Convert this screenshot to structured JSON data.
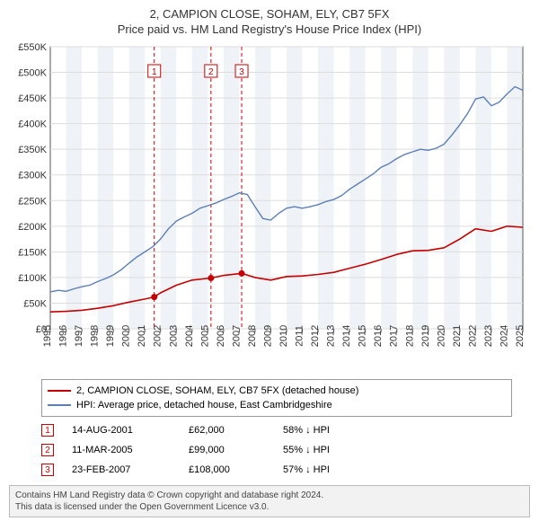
{
  "title_line1": "2, CAMPION CLOSE, SOHAM, ELY, CB7 5FX",
  "title_line2": "Price paid vs. HM Land Registry's House Price Index (HPI)",
  "chart": {
    "type": "line",
    "background_color": "#ffffff",
    "plot_band_color": "#eff3f7",
    "grid_color": "#dddddd",
    "axis_color": "#555555",
    "ylim": [
      0,
      550000
    ],
    "ytick_step": 50000,
    "ytick_labels": [
      "£0",
      "£50K",
      "£100K",
      "£150K",
      "£200K",
      "£250K",
      "£300K",
      "£350K",
      "£400K",
      "£450K",
      "£500K",
      "£550K"
    ],
    "xlim": [
      1995,
      2025
    ],
    "xticks": [
      1995,
      1996,
      1997,
      1998,
      1999,
      2000,
      2001,
      2002,
      2003,
      2004,
      2005,
      2006,
      2007,
      2008,
      2009,
      2010,
      2011,
      2012,
      2013,
      2014,
      2015,
      2016,
      2017,
      2018,
      2019,
      2020,
      2021,
      2022,
      2023,
      2024,
      2025
    ],
    "series": [
      {
        "name": "hpi",
        "color": "#5b7fb6",
        "width": 1.4,
        "points": [
          [
            1995,
            72000
          ],
          [
            1995.5,
            75000
          ],
          [
            1996,
            73000
          ],
          [
            1996.5,
            78000
          ],
          [
            1997,
            82000
          ],
          [
            1997.5,
            85000
          ],
          [
            1998,
            92000
          ],
          [
            1998.5,
            98000
          ],
          [
            1999,
            105000
          ],
          [
            1999.5,
            115000
          ],
          [
            2000,
            128000
          ],
          [
            2000.5,
            140000
          ],
          [
            2001,
            150000
          ],
          [
            2001.5,
            160000
          ],
          [
            2002,
            175000
          ],
          [
            2002.5,
            195000
          ],
          [
            2003,
            210000
          ],
          [
            2003.5,
            218000
          ],
          [
            2004,
            225000
          ],
          [
            2004.5,
            235000
          ],
          [
            2005,
            240000
          ],
          [
            2005.5,
            245000
          ],
          [
            2006,
            252000
          ],
          [
            2006.5,
            258000
          ],
          [
            2007,
            265000
          ],
          [
            2007.5,
            262000
          ],
          [
            2008,
            238000
          ],
          [
            2008.5,
            215000
          ],
          [
            2009,
            212000
          ],
          [
            2009.5,
            225000
          ],
          [
            2010,
            235000
          ],
          [
            2010.5,
            238000
          ],
          [
            2011,
            235000
          ],
          [
            2011.5,
            238000
          ],
          [
            2012,
            242000
          ],
          [
            2012.5,
            248000
          ],
          [
            2013,
            252000
          ],
          [
            2013.5,
            260000
          ],
          [
            2014,
            272000
          ],
          [
            2014.5,
            282000
          ],
          [
            2015,
            292000
          ],
          [
            2015.5,
            302000
          ],
          [
            2016,
            315000
          ],
          [
            2016.5,
            322000
          ],
          [
            2017,
            332000
          ],
          [
            2017.5,
            340000
          ],
          [
            2018,
            345000
          ],
          [
            2018.5,
            350000
          ],
          [
            2019,
            348000
          ],
          [
            2019.5,
            352000
          ],
          [
            2020,
            360000
          ],
          [
            2020.5,
            378000
          ],
          [
            2021,
            398000
          ],
          [
            2021.5,
            420000
          ],
          [
            2022,
            448000
          ],
          [
            2022.5,
            452000
          ],
          [
            2023,
            435000
          ],
          [
            2023.5,
            442000
          ],
          [
            2024,
            458000
          ],
          [
            2024.5,
            472000
          ],
          [
            2025,
            465000
          ]
        ]
      },
      {
        "name": "price_paid",
        "color": "#c40000",
        "width": 1.6,
        "points": [
          [
            1995,
            33000
          ],
          [
            1996,
            34000
          ],
          [
            1997,
            36000
          ],
          [
            1998,
            40000
          ],
          [
            1999,
            45000
          ],
          [
            2000,
            52000
          ],
          [
            2001,
            58000
          ],
          [
            2001.6,
            62000
          ],
          [
            2002,
            70000
          ],
          [
            2003,
            85000
          ],
          [
            2004,
            95000
          ],
          [
            2005.2,
            99000
          ],
          [
            2006,
            104000
          ],
          [
            2007.15,
            108000
          ],
          [
            2008,
            100000
          ],
          [
            2009,
            95000
          ],
          [
            2010,
            102000
          ],
          [
            2011,
            103000
          ],
          [
            2012,
            106000
          ],
          [
            2013,
            110000
          ],
          [
            2014,
            118000
          ],
          [
            2015,
            126000
          ],
          [
            2016,
            135000
          ],
          [
            2017,
            145000
          ],
          [
            2018,
            152000
          ],
          [
            2019,
            153000
          ],
          [
            2020,
            158000
          ],
          [
            2021,
            175000
          ],
          [
            2022,
            195000
          ],
          [
            2023,
            190000
          ],
          [
            2024,
            200000
          ],
          [
            2025,
            198000
          ]
        ]
      }
    ],
    "markers": [
      {
        "num": "1",
        "x": 2001.6,
        "y": 62000
      },
      {
        "num": "2",
        "x": 2005.2,
        "y": 99000
      },
      {
        "num": "3",
        "x": 2007.15,
        "y": 108000
      }
    ],
    "marker_color": "#c40000",
    "vline_color": "#cc0000",
    "vline_dash": "4,3",
    "callout_border": "#cc0000",
    "callout_text": "#cc0000",
    "label_fontsize": 11
  },
  "legend": {
    "items": [
      {
        "color": "#c40000",
        "label": "2, CAMPION CLOSE, SOHAM, ELY, CB7 5FX (detached house)"
      },
      {
        "color": "#5b7fb6",
        "label": "HPI: Average price, detached house, East Cambridgeshire"
      }
    ]
  },
  "events": [
    {
      "num": "1",
      "date": "14-AUG-2001",
      "price": "£62,000",
      "delta": "58% ↓ HPI"
    },
    {
      "num": "2",
      "date": "11-MAR-2005",
      "price": "£99,000",
      "delta": "55% ↓ HPI"
    },
    {
      "num": "3",
      "date": "23-FEB-2007",
      "price": "£108,000",
      "delta": "57% ↓ HPI"
    }
  ],
  "footer_line1": "Contains HM Land Registry data © Crown copyright and database right 2024.",
  "footer_line2": "This data is licensed under the Open Government Licence v3.0."
}
